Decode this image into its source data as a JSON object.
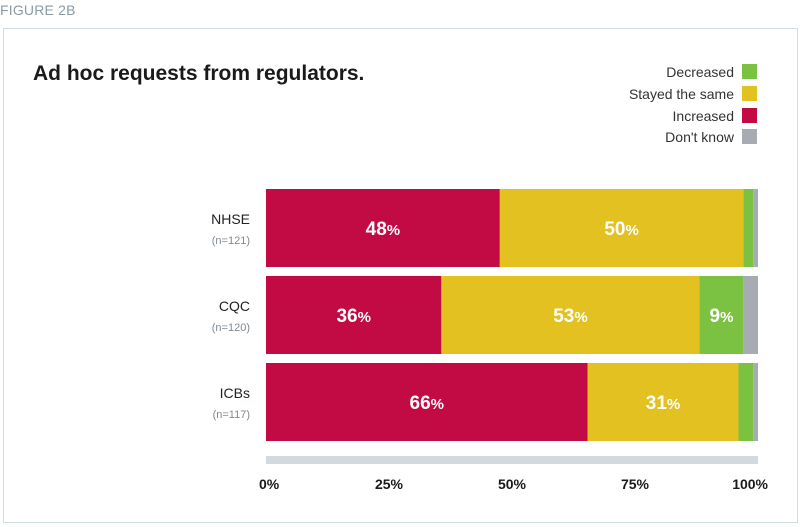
{
  "figure_label": "FIGURE 2B",
  "chart_data": {
    "type": "bar",
    "orientation": "horizontal",
    "stacked": true,
    "title": "Ad hoc requests from regulators.",
    "categories": [
      "NHSE",
      "CQC",
      "ICBs"
    ],
    "sample_sizes": [
      "(n=121)",
      "(n=120)",
      "(n=117)"
    ],
    "series": [
      {
        "name": "Increased",
        "color": "#c20a45",
        "values": [
          48,
          36,
          66
        ],
        "labels": [
          "48%",
          "36%",
          "66%"
        ]
      },
      {
        "name": "Stayed the same",
        "color": "#e2c120",
        "values": [
          50,
          53,
          31
        ],
        "labels": [
          "50%",
          "53%",
          "31%"
        ]
      },
      {
        "name": "Decreased",
        "color": "#7cc242",
        "values": [
          2,
          9,
          3
        ],
        "labels": [
          "",
          "9%",
          ""
        ]
      },
      {
        "name": "Don't know",
        "color": "#a6acb2",
        "values": [
          1,
          3,
          1
        ],
        "labels": [
          "",
          "",
          ""
        ]
      }
    ],
    "legend_order": [
      "Decreased",
      "Stayed the same",
      "Increased",
      "Don't know"
    ],
    "legend_position": "top-right",
    "xlim": [
      0,
      100
    ],
    "xticks": [
      "0%",
      "25%",
      "50%",
      "75%",
      "100%"
    ],
    "grid": false
  }
}
